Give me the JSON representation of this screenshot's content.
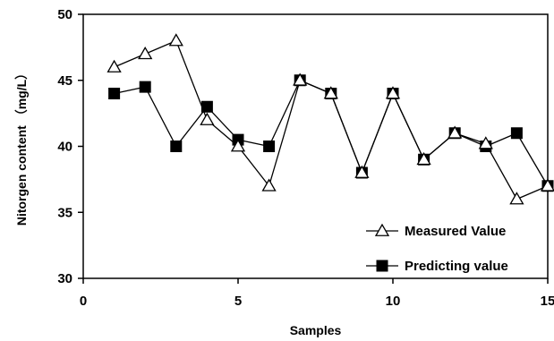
{
  "chart_data": {
    "type": "line",
    "xlabel": "Samples",
    "ylabel": "Nitorgen content （mg/L）",
    "xlim": [
      0,
      15
    ],
    "ylim": [
      30,
      50
    ],
    "x_ticks": [
      0,
      5,
      10,
      15
    ],
    "y_ticks": [
      30,
      35,
      40,
      45,
      50
    ],
    "grid": false,
    "legend_position": "bottom-right",
    "series": [
      {
        "name": "Measured Value",
        "marker": "open-triangle",
        "x": [
          1,
          2,
          3,
          4,
          5,
          6,
          7,
          8,
          9,
          10,
          11,
          12,
          13,
          14,
          15
        ],
        "values": [
          46,
          47,
          48,
          42,
          40,
          37,
          45,
          44,
          38,
          44,
          39,
          41,
          40.2,
          36,
          37
        ]
      },
      {
        "name": "Predicting value",
        "marker": "filled-square",
        "x": [
          1,
          2,
          3,
          4,
          5,
          6,
          7,
          8,
          9,
          10,
          11,
          12,
          13,
          14,
          15
        ],
        "values": [
          44,
          44.5,
          40,
          43,
          40.5,
          40,
          45,
          44,
          38,
          44,
          39,
          41,
          40,
          41,
          37
        ]
      }
    ]
  }
}
